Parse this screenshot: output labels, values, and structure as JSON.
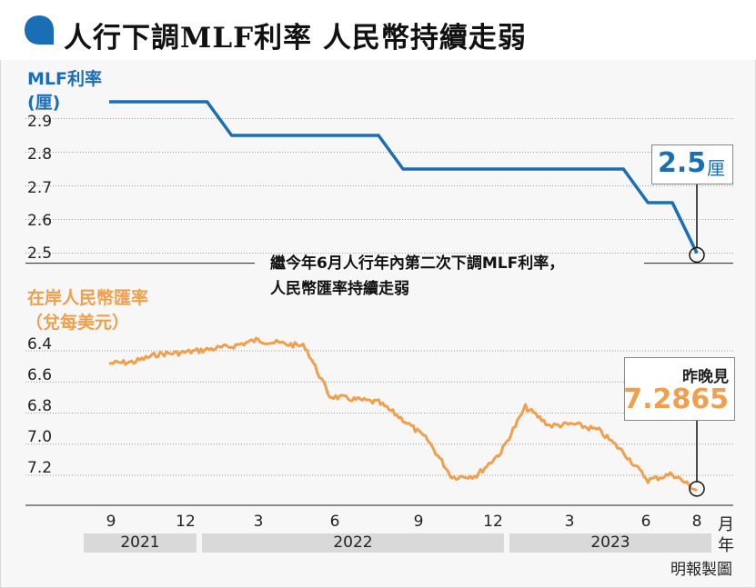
{
  "title": "人行下調MLF利率 人民幣持續走弱",
  "note_lines": [
    "繼今年6月人行年內第二次下調MLF利率，",
    "人民幣匯率持續走弱"
  ],
  "credit": "明報製圖",
  "x_axis": {
    "month_ticks": [
      "9",
      "12",
      "3",
      "6",
      "9",
      "12",
      "3",
      "6",
      "8"
    ],
    "month_unit": "月",
    "year_unit": "年",
    "years": [
      "2021",
      "2022",
      "2023"
    ]
  },
  "colors": {
    "mlf": "#1a6eb5",
    "cny": "#f0a04d",
    "grid": "#999999",
    "bubble": "#1a6eb5"
  },
  "chart_data": [
    {
      "type": "line",
      "title": "MLF利率",
      "ylabel": "(厘)",
      "ylim": [
        2.45,
        2.95
      ],
      "yticks": [
        "2.9",
        "2.8",
        "2.7",
        "2.6",
        "2.5"
      ],
      "grid": true,
      "series": [
        {
          "x": [
            "2021-08",
            "2021-09",
            "2021-10",
            "2021-11",
            "2021-12",
            "2022-01",
            "2022-02",
            "2022-03",
            "2022-04",
            "2022-05",
            "2022-06",
            "2022-07",
            "2022-08",
            "2022-09",
            "2022-10",
            "2022-11",
            "2022-12",
            "2023-01",
            "2023-02",
            "2023-03",
            "2023-04",
            "2023-05",
            "2023-06",
            "2023-07",
            "2023-08"
          ],
          "values": [
            2.95,
            2.95,
            2.95,
            2.95,
            2.95,
            2.85,
            2.85,
            2.85,
            2.85,
            2.85,
            2.85,
            2.85,
            2.75,
            2.75,
            2.75,
            2.75,
            2.75,
            2.75,
            2.75,
            2.75,
            2.75,
            2.75,
            2.65,
            2.65,
            2.5
          ]
        }
      ],
      "callout": {
        "value": "2.5",
        "unit": "厘"
      }
    },
    {
      "type": "line",
      "title": "在岸人民幣匯率",
      "ylabel": "（兌每美元）",
      "ylim": [
        6.3,
        7.3
      ],
      "y_inverted": true,
      "yticks": [
        "6.4",
        "6.6",
        "6.8",
        "7.0",
        "7.2"
      ],
      "grid": true,
      "series": [
        {
          "x": [
            "2021-08",
            "2021-09",
            "2021-10",
            "2021-11",
            "2021-12",
            "2022-01",
            "2022-02",
            "2022-03",
            "2022-04",
            "2022-05",
            "2022-06",
            "2022-07",
            "2022-08",
            "2022-09",
            "2022-10",
            "2022-11",
            "2022-12",
            "2023-01",
            "2023-02",
            "2023-03",
            "2023-04",
            "2023-05",
            "2023-06",
            "2023-07",
            "2023-08"
          ],
          "values": [
            6.47,
            6.46,
            6.41,
            6.4,
            6.38,
            6.36,
            6.32,
            6.34,
            6.36,
            6.68,
            6.7,
            6.72,
            6.83,
            6.96,
            7.2,
            7.19,
            7.04,
            6.75,
            6.87,
            6.86,
            6.9,
            7.04,
            7.22,
            7.18,
            7.2865
          ]
        }
      ],
      "callout": {
        "label": "昨晚見",
        "value": "7.2865"
      }
    }
  ]
}
